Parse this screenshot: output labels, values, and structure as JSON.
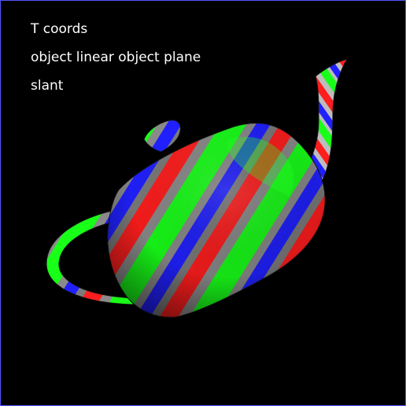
{
  "overlay": {
    "lines": [
      "T coords",
      "object linear object plane",
      "slant"
    ]
  },
  "scene": {
    "object_icon": "teapot-icon",
    "stripe_colors": [
      "#ff1a1a",
      "#c8c8c8",
      "#1aff1a",
      "#2222ff"
    ],
    "background": "#000000",
    "border": "#5555ff"
  }
}
